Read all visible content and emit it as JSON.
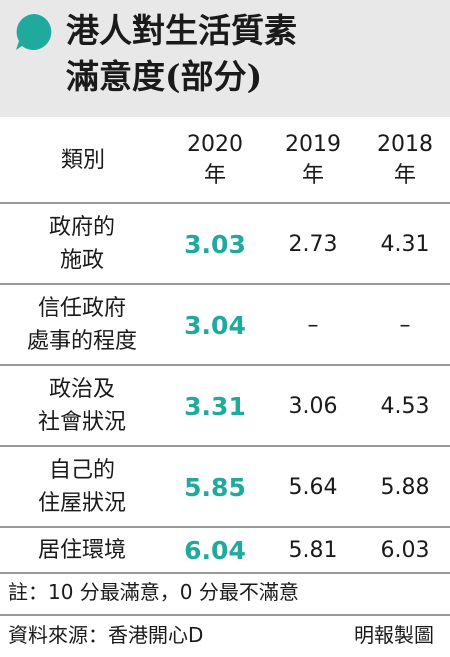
{
  "title_lines": [
    "港人對生活質素",
    "滿意度(部分)"
  ],
  "accent_color": "#20a99d",
  "header_bg": "#e8e8e8",
  "bubble_icon": "speech-bubble-icon",
  "chart_data": {
    "type": "table",
    "title": "港人對生活質素滿意度(部分)",
    "columns": [
      "類別",
      "2020年",
      "2019年",
      "2018年"
    ],
    "column_header": {
      "category": "類別",
      "years": [
        {
          "year": "2020",
          "suffix": "年"
        },
        {
          "year": "2019",
          "suffix": "年"
        },
        {
          "year": "2018",
          "suffix": "年"
        }
      ]
    },
    "rows": [
      {
        "category_lines": [
          "政府的",
          "施政"
        ],
        "v2020": "3.03",
        "v2019": "2.73",
        "v2018": "4.31"
      },
      {
        "category_lines": [
          "信任政府",
          "處事的程度"
        ],
        "v2020": "3.04",
        "v2019": "–",
        "v2018": "–"
      },
      {
        "category_lines": [
          "政治及",
          "社會狀況"
        ],
        "v2020": "3.31",
        "v2019": "3.06",
        "v2018": "4.53"
      },
      {
        "category_lines": [
          "自己的",
          "住屋狀況"
        ],
        "v2020": "5.85",
        "v2019": "5.64",
        "v2018": "5.88"
      },
      {
        "category_lines": [
          "居住環境"
        ],
        "v2020": "6.04",
        "v2019": "5.81",
        "v2018": "6.03"
      }
    ]
  },
  "note": "註：10 分最滿意，0 分最不滿意",
  "source": "資料來源：香港開心D",
  "credit": "明報製圖"
}
